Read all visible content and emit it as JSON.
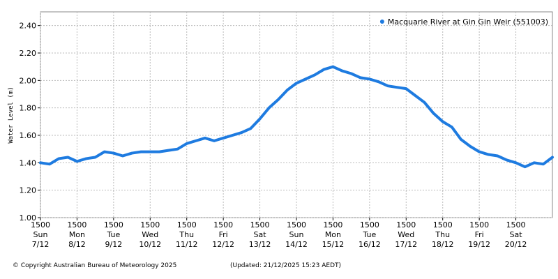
{
  "chart_data": {
    "type": "line",
    "y_label": "Water Level (m)",
    "x": [
      0,
      0.25,
      0.5,
      0.75,
      1,
      1.25,
      1.5,
      1.75,
      2,
      2.25,
      2.5,
      2.75,
      3,
      3.25,
      3.5,
      3.75,
      4,
      4.25,
      4.5,
      4.75,
      5,
      5.25,
      5.5,
      5.75,
      6,
      6.25,
      6.5,
      6.75,
      7,
      7.25,
      7.5,
      7.75,
      8,
      8.25,
      8.5,
      8.75,
      9,
      9.25,
      9.5,
      9.75,
      10,
      10.25,
      10.5,
      10.75,
      11,
      11.25,
      11.5,
      11.75,
      12,
      12.25,
      12.5,
      12.75,
      13,
      13.25,
      13.5,
      13.75,
      14
    ],
    "series": [
      {
        "name": "Macquarie River at Gin Gin Weir (551003)",
        "color": "#1e7be0",
        "values": [
          1.4,
          1.39,
          1.43,
          1.44,
          1.41,
          1.43,
          1.44,
          1.48,
          1.47,
          1.45,
          1.47,
          1.48,
          1.48,
          1.48,
          1.49,
          1.5,
          1.54,
          1.56,
          1.58,
          1.56,
          1.58,
          1.6,
          1.62,
          1.65,
          1.72,
          1.8,
          1.86,
          1.93,
          1.98,
          2.01,
          2.04,
          2.08,
          2.1,
          2.07,
          2.05,
          2.02,
          2.01,
          1.99,
          1.96,
          1.95,
          1.94,
          1.89,
          1.84,
          1.76,
          1.7,
          1.66,
          1.57,
          1.52,
          1.48,
          1.46,
          1.45,
          1.42,
          1.4,
          1.37,
          1.4,
          1.39,
          1.44
        ]
      }
    ],
    "xlim": [
      0,
      14
    ],
    "xticks": [
      {
        "value": 0,
        "label": "1500\nSun\n7/12"
      },
      {
        "value": 1,
        "label": "1500\nMon\n8/12"
      },
      {
        "value": 2,
        "label": "1500\nTue\n9/12"
      },
      {
        "value": 3,
        "label": "1500\nWed\n10/12"
      },
      {
        "value": 4,
        "label": "1500\nThu\n11/12"
      },
      {
        "value": 5,
        "label": "1500\nFri\n12/12"
      },
      {
        "value": 6,
        "label": "1500\nSat\n13/12"
      },
      {
        "value": 7,
        "label": "1500\nSun\n14/12"
      },
      {
        "value": 8,
        "label": "1500\nMon\n15/12"
      },
      {
        "value": 9,
        "label": "1500\nTue\n16/12"
      },
      {
        "value": 10,
        "label": "1500\nWed\n17/12"
      },
      {
        "value": 11,
        "label": "1500\nThu\n18/12"
      },
      {
        "value": 12,
        "label": "1500\nFri\n19/12"
      },
      {
        "value": 13,
        "label": "1500\nSat\n20/12"
      }
    ],
    "ylim": [
      1.0,
      2.5
    ],
    "yticks": [
      {
        "value": 1.0,
        "label": "1.00"
      },
      {
        "value": 1.2,
        "label": "1.20"
      },
      {
        "value": 1.4,
        "label": "1.40"
      },
      {
        "value": 1.6,
        "label": "1.60"
      },
      {
        "value": 1.8,
        "label": "1.80"
      },
      {
        "value": 2.0,
        "label": "2.00"
      },
      {
        "value": 2.2,
        "label": "2.20"
      },
      {
        "value": 2.4,
        "label": "2.40"
      }
    ],
    "grid": true,
    "legend": "upper right"
  },
  "footer": {
    "copyright": "© Copyright Australian Bureau of Meteorology 2025",
    "updated": "(Updated: 21/12/2025 15:23 AEDT)"
  }
}
